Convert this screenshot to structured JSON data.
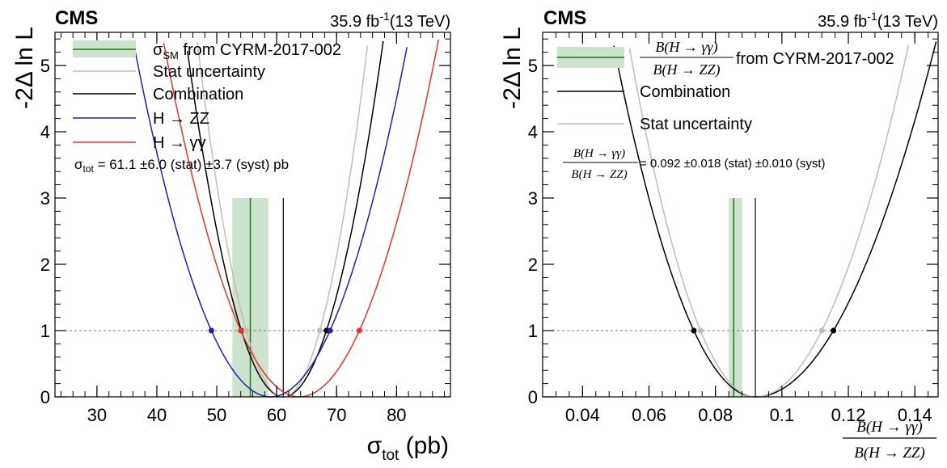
{
  "chart_data": [
    {
      "type": "line",
      "header": {
        "experiment": "CMS",
        "lumi": "35.9 fb",
        "lumi_sup": "-1",
        "energy": "(13 TeV)"
      },
      "ylabel": "-2Δ ln L",
      "xlabel": "σ",
      "xlabel_sub": "tot",
      "xlabel_unit": " (pb)",
      "xlim": [
        23,
        89
      ],
      "ylim": [
        0,
        5.5
      ],
      "xticks": [
        30,
        40,
        50,
        60,
        70,
        80
      ],
      "yticks": [
        0,
        1,
        2,
        3,
        4,
        5
      ],
      "reference_line_y": 1,
      "sm_band": {
        "center": 55.6,
        "low": 52.6,
        "high": 58.6,
        "color": "#cde3cd",
        "line_color": "#1a7a1a"
      },
      "series": [
        {
          "key": "combination",
          "color": "#000000",
          "min": 61.1,
          "low": 54.1,
          "high": 68.3
        },
        {
          "key": "stat",
          "color": "#c2bcb2",
          "min": 61.1,
          "low": 54.9,
          "high": 67.2
        },
        {
          "key": "hzz",
          "color": "#1f1fb0",
          "min": 59.0,
          "low": 49.1,
          "high": 68.9
        },
        {
          "key": "hgg",
          "color": "#e83030",
          "min": 63.8,
          "low": 54.0,
          "high": 73.8
        }
      ],
      "legend": [
        {
          "type": "band",
          "sym": "σ",
          "sub": "SM",
          "text": " from CYRM-2017-002"
        },
        {
          "type": "stat",
          "text": "Stat uncertainty"
        },
        {
          "type": "combination",
          "text": "Combination"
        },
        {
          "type": "hzz",
          "text": "H → ZZ"
        },
        {
          "type": "hgg",
          "text": "H → γγ"
        }
      ],
      "result": {
        "sym": "σ",
        "sub": "tot",
        "text": " = 61.1  ±6.0 (stat) ±3.7 (syst)  pb"
      }
    },
    {
      "type": "line",
      "header": {
        "experiment": "CMS",
        "lumi": "35.9 fb",
        "lumi_sup": "-1",
        "energy": "(13 TeV)"
      },
      "ylabel": "-2Δ ln L",
      "xlabel_num": "B(H → γγ)",
      "xlabel_den": "B(H → ZZ)",
      "xlim": [
        0.028,
        0.147
      ],
      "ylim": [
        0,
        5.5
      ],
      "xticks": [
        0.04,
        0.06,
        0.08,
        0.1,
        0.12,
        0.14
      ],
      "xtick_labels": [
        "0.04",
        "0.06",
        "0.08",
        "0.1",
        "0.12",
        "0.14"
      ],
      "yticks": [
        0,
        1,
        2,
        3,
        4,
        5
      ],
      "reference_line_y": 1,
      "sm_band": {
        "center": 0.0855,
        "low": 0.084,
        "high": 0.088,
        "color": "#cde3cd",
        "line_color": "#1a7a1a"
      },
      "series": [
        {
          "key": "combination",
          "color": "#000000",
          "min": 0.092,
          "low": 0.0735,
          "high": 0.1155
        },
        {
          "key": "stat",
          "color": "#c2bcb2",
          "min": 0.092,
          "low": 0.0755,
          "high": 0.112
        }
      ],
      "legend": [
        {
          "type": "band",
          "num": "B(H → γγ)",
          "den": "B(H → ZZ)",
          "text": " from CYRM-2017-002"
        },
        {
          "type": "combination",
          "text": "Combination"
        },
        {
          "type": "stat",
          "text": "Stat uncertainty"
        }
      ],
      "result": {
        "num": "B(H → γγ)",
        "den": "B(H → ZZ)",
        "text": " = 0.092  ±0.018 (stat) ±0.010 (syst)"
      }
    }
  ]
}
